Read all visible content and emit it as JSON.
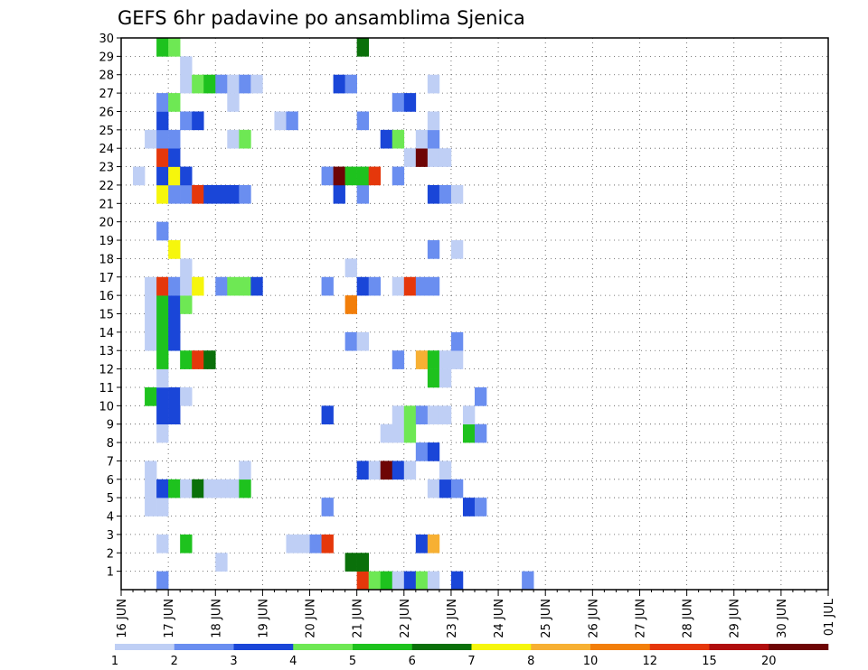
{
  "chart_data": {
    "type": "heatmap",
    "title": "GEFS 6hr padavine po ansamblima Sjenica",
    "x_tick_labels": [
      "16 JUN",
      "17 JUN",
      "18 JUN",
      "19 JUN",
      "20 JUN",
      "21 JUN",
      "22 JUN",
      "23 JUN",
      "24 JUN",
      "25 JUN",
      "26 JUN",
      "27 JUN",
      "28 JUN",
      "29 JUN",
      "30 JUN",
      "01 JUL"
    ],
    "y_tick_labels": [
      "1",
      "2",
      "3",
      "4",
      "5",
      "6",
      "7",
      "8",
      "9",
      "10",
      "11",
      "12",
      "13",
      "14",
      "15",
      "16",
      "17",
      "18",
      "19",
      "20",
      "21",
      "22",
      "23",
      "24",
      "25",
      "26",
      "27",
      "28",
      "29",
      "30"
    ],
    "x_unit": "6-hour step from 16 JUN 00Z",
    "xlim_steps": [
      0,
      60
    ],
    "ylim_members": [
      0,
      30
    ],
    "grid": true,
    "legend": {
      "position": "bottom",
      "levels": [
        "1",
        "2",
        "3",
        "4",
        "5",
        "6",
        "7",
        "8",
        "10",
        "12",
        "15",
        "20"
      ],
      "colors": [
        "#bfcff5",
        "#6a8ef0",
        "#1a46d8",
        "#6ee854",
        "#1ec21e",
        "#0a700a",
        "#f6f60c",
        "#f7b033",
        "#f27e0a",
        "#e5370b",
        "#b00d0d",
        "#6e0505"
      ]
    },
    "series": [
      {
        "member": 0,
        "cells": [
          [
            3,
            2
          ],
          [
            20,
            10
          ],
          [
            21,
            4
          ],
          [
            22,
            5
          ],
          [
            23,
            1
          ],
          [
            24,
            3
          ],
          [
            25,
            4
          ],
          [
            26,
            1
          ],
          [
            28,
            3
          ],
          [
            34,
            2
          ]
        ]
      },
      {
        "member": 1,
        "cells": [
          [
            8,
            1
          ],
          [
            19,
            6
          ],
          [
            20,
            6
          ]
        ]
      },
      {
        "member": 2,
        "cells": [
          [
            3,
            1
          ],
          [
            5,
            5
          ],
          [
            14,
            1
          ],
          [
            15,
            1
          ],
          [
            16,
            2
          ],
          [
            17,
            10
          ],
          [
            25,
            3
          ],
          [
            26,
            8
          ]
        ]
      },
      {
        "member": 4,
        "cells": [
          [
            2,
            1
          ],
          [
            3,
            1
          ],
          [
            17,
            2
          ],
          [
            29,
            3
          ],
          [
            30,
            2
          ]
        ]
      },
      {
        "member": 5,
        "cells": [
          [
            2,
            1
          ],
          [
            3,
            3
          ],
          [
            4,
            5
          ],
          [
            5,
            1
          ],
          [
            6,
            6
          ],
          [
            7,
            1
          ],
          [
            8,
            1
          ],
          [
            9,
            1
          ],
          [
            10,
            5
          ],
          [
            26,
            1
          ],
          [
            27,
            3
          ],
          [
            28,
            2
          ]
        ]
      },
      {
        "member": 6,
        "cells": [
          [
            2,
            1
          ],
          [
            10,
            1
          ],
          [
            20,
            3
          ],
          [
            21,
            1
          ],
          [
            22,
            12
          ],
          [
            23,
            3
          ],
          [
            24,
            1
          ],
          [
            27,
            1
          ]
        ]
      },
      {
        "member": 7,
        "cells": [
          [
            25,
            2
          ],
          [
            26,
            3
          ]
        ]
      },
      {
        "member": 8,
        "cells": [
          [
            3,
            1
          ],
          [
            22,
            1
          ],
          [
            23,
            1
          ],
          [
            24,
            4
          ],
          [
            29,
            5
          ],
          [
            30,
            2
          ]
        ]
      },
      {
        "member": 9,
        "cells": [
          [
            3,
            3
          ],
          [
            4,
            3
          ],
          [
            17,
            3
          ],
          [
            23,
            1
          ],
          [
            24,
            4
          ],
          [
            25,
            2
          ],
          [
            26,
            1
          ],
          [
            27,
            1
          ],
          [
            29,
            1
          ]
        ]
      },
      {
        "member": 10,
        "cells": [
          [
            2,
            5
          ],
          [
            3,
            3
          ],
          [
            4,
            3
          ],
          [
            5,
            1
          ],
          [
            30,
            2
          ]
        ]
      },
      {
        "member": 11,
        "cells": [
          [
            3,
            1
          ],
          [
            26,
            5
          ],
          [
            27,
            1
          ]
        ]
      },
      {
        "member": 12,
        "cells": [
          [
            3,
            5
          ],
          [
            5,
            5
          ],
          [
            6,
            10
          ],
          [
            7,
            6
          ],
          [
            23,
            2
          ],
          [
            25,
            8
          ],
          [
            26,
            5
          ],
          [
            27,
            1
          ],
          [
            28,
            1
          ]
        ]
      },
      {
        "member": 13,
        "cells": [
          [
            2,
            1
          ],
          [
            3,
            5
          ],
          [
            4,
            3
          ],
          [
            19,
            2
          ],
          [
            20,
            1
          ],
          [
            28,
            2
          ]
        ]
      },
      {
        "member": 14,
        "cells": [
          [
            2,
            1
          ],
          [
            3,
            5
          ],
          [
            4,
            3
          ]
        ]
      },
      {
        "member": 15,
        "cells": [
          [
            2,
            1
          ],
          [
            3,
            5
          ],
          [
            4,
            3
          ],
          [
            5,
            4
          ],
          [
            19,
            9
          ]
        ]
      },
      {
        "member": 16,
        "cells": [
          [
            2,
            1
          ],
          [
            3,
            10
          ],
          [
            4,
            2
          ],
          [
            5,
            1
          ],
          [
            6,
            7
          ],
          [
            8,
            2
          ],
          [
            9,
            4
          ],
          [
            10,
            4
          ],
          [
            11,
            3
          ],
          [
            17,
            2
          ],
          [
            20,
            3
          ],
          [
            21,
            2
          ],
          [
            23,
            1
          ],
          [
            24,
            10
          ],
          [
            25,
            2
          ],
          [
            26,
            2
          ]
        ]
      },
      {
        "member": 17,
        "cells": [
          [
            5,
            1
          ],
          [
            19,
            1
          ]
        ]
      },
      {
        "member": 18,
        "cells": [
          [
            4,
            7
          ],
          [
            26,
            2
          ],
          [
            28,
            1
          ]
        ]
      },
      {
        "member": 19,
        "cells": [
          [
            3,
            2
          ]
        ]
      },
      {
        "member": 21,
        "cells": [
          [
            3,
            7
          ],
          [
            4,
            2
          ],
          [
            5,
            2
          ],
          [
            6,
            10
          ],
          [
            7,
            3
          ],
          [
            8,
            3
          ],
          [
            9,
            3
          ],
          [
            10,
            2
          ],
          [
            18,
            3
          ],
          [
            20,
            2
          ],
          [
            26,
            3
          ],
          [
            27,
            2
          ],
          [
            28,
            1
          ]
        ]
      },
      {
        "member": 22,
        "cells": [
          [
            1,
            1
          ],
          [
            3,
            3
          ],
          [
            4,
            7
          ],
          [
            5,
            3
          ],
          [
            17,
            2
          ],
          [
            18,
            20
          ],
          [
            19,
            5
          ],
          [
            20,
            5
          ],
          [
            21,
            10
          ],
          [
            23,
            2
          ]
        ]
      },
      {
        "member": 23,
        "cells": [
          [
            3,
            10
          ],
          [
            4,
            3
          ],
          [
            24,
            1
          ],
          [
            25,
            12
          ],
          [
            26,
            1
          ],
          [
            27,
            1
          ]
        ]
      },
      {
        "member": 24,
        "cells": [
          [
            2,
            1
          ],
          [
            3,
            2
          ],
          [
            4,
            2
          ],
          [
            9,
            1
          ],
          [
            10,
            4
          ],
          [
            22,
            3
          ],
          [
            23,
            4
          ],
          [
            25,
            1
          ],
          [
            26,
            2
          ]
        ]
      },
      {
        "member": 25,
        "cells": [
          [
            3,
            3
          ],
          [
            5,
            2
          ],
          [
            6,
            3
          ],
          [
            13,
            1
          ],
          [
            14,
            2
          ],
          [
            20,
            2
          ],
          [
            26,
            1
          ]
        ]
      },
      {
        "member": 26,
        "cells": [
          [
            3,
            2
          ],
          [
            4,
            4
          ],
          [
            9,
            1
          ],
          [
            23,
            2
          ],
          [
            24,
            3
          ]
        ]
      },
      {
        "member": 27,
        "cells": [
          [
            5,
            1
          ],
          [
            6,
            4
          ],
          [
            7,
            5
          ],
          [
            8,
            2
          ],
          [
            9,
            1
          ],
          [
            10,
            2
          ],
          [
            11,
            1
          ],
          [
            18,
            3
          ],
          [
            19,
            2
          ],
          [
            26,
            1
          ]
        ]
      },
      {
        "member": 28,
        "cells": [
          [
            5,
            1
          ]
        ]
      },
      {
        "member": 29,
        "cells": [
          [
            3,
            5
          ],
          [
            4,
            4
          ],
          [
            20,
            6
          ]
        ]
      }
    ]
  }
}
